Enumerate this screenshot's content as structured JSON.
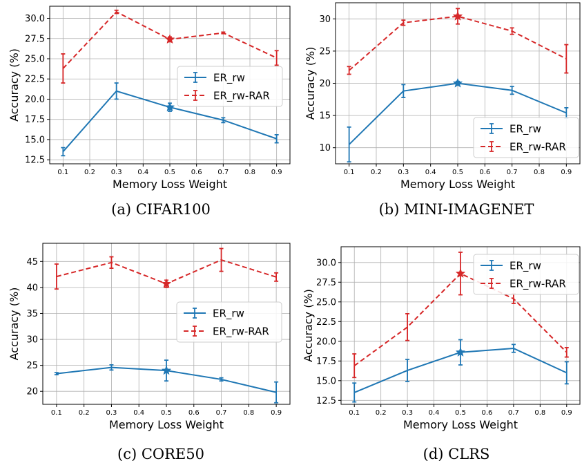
{
  "colors": {
    "er_rw": "#1f77b4",
    "er_rw_rar": "#d62728",
    "grid": "#b0b0b0"
  },
  "chart_data": [
    {
      "type": "line",
      "caption": "(a) CIFAR100",
      "xlabel": "Memory Loss Weight",
      "ylabel": "Accuracy (%)",
      "xlim": [
        0.05,
        0.95
      ],
      "ylim": [
        12.0,
        31.5
      ],
      "xticks": [
        0.1,
        0.2,
        0.3,
        0.4,
        0.5,
        0.6,
        0.7,
        0.8,
        0.9
      ],
      "xtick_labels": [
        "0.1",
        "0.2",
        "0.3",
        "0.4",
        "0.5",
        "0.6",
        "0.7",
        "0.8",
        "0.9"
      ],
      "yticks": [
        12.5,
        15.0,
        17.5,
        20.0,
        22.5,
        25.0,
        27.5,
        30.0
      ],
      "ytick_labels": [
        "12.5",
        "15.0",
        "17.5",
        "20.0",
        "22.5",
        "25.0",
        "27.5",
        "30.0"
      ],
      "grid": true,
      "legend": "center-right",
      "highlight_x": 0.5,
      "series": [
        {
          "name": "ER_rw",
          "style": "solid",
          "x": [
            0.1,
            0.3,
            0.5,
            0.7,
            0.9
          ],
          "values": [
            13.5,
            21.0,
            19.0,
            17.4,
            15.1
          ],
          "errors": [
            0.5,
            1.0,
            0.5,
            0.3,
            0.5
          ]
        },
        {
          "name": "ER_rw-RAR",
          "style": "dashed",
          "x": [
            0.1,
            0.3,
            0.5,
            0.7,
            0.9
          ],
          "values": [
            23.8,
            30.8,
            27.4,
            28.2,
            25.1
          ],
          "errors": [
            1.8,
            0.2,
            0.3,
            0.1,
            0.9
          ]
        }
      ]
    },
    {
      "type": "line",
      "caption": "(b) MINI-IMAGENET",
      "xlabel": "Memory Loss Weight",
      "ylabel": "Accuracy (%)",
      "xlim": [
        0.05,
        0.95
      ],
      "ylim": [
        7.5,
        32.5
      ],
      "xticks": [
        0.1,
        0.2,
        0.3,
        0.4,
        0.5,
        0.6,
        0.7,
        0.8,
        0.9
      ],
      "xtick_labels": [
        "0.1",
        "0.2",
        "0.3",
        "0.4",
        "0.5",
        "0.6",
        "0.7",
        "0.8",
        "0.9"
      ],
      "yticks": [
        10,
        15,
        20,
        25,
        30
      ],
      "ytick_labels": [
        "10",
        "15",
        "20",
        "25",
        "30"
      ],
      "grid": true,
      "legend": "lower-right",
      "highlight_x": 0.5,
      "series": [
        {
          "name": "ER_rw",
          "style": "solid",
          "x": [
            0.1,
            0.3,
            0.5,
            0.7,
            0.9
          ],
          "values": [
            10.5,
            18.8,
            20.0,
            18.9,
            15.4
          ],
          "errors": [
            2.7,
            1.0,
            0.3,
            0.6,
            0.8
          ]
        },
        {
          "name": "ER_rw-RAR",
          "style": "dashed",
          "x": [
            0.1,
            0.3,
            0.5,
            0.7,
            0.9
          ],
          "values": [
            22.0,
            29.4,
            30.4,
            28.1,
            23.8
          ],
          "errors": [
            0.6,
            0.4,
            1.2,
            0.5,
            2.2
          ]
        }
      ]
    },
    {
      "type": "line",
      "caption": "(c) CORE50",
      "xlabel": "Memory Loss Weight",
      "ylabel": "Accuracy (%)",
      "xlim": [
        0.05,
        0.95
      ],
      "ylim": [
        17.5,
        48.5
      ],
      "xticks": [
        0.1,
        0.2,
        0.3,
        0.4,
        0.5,
        0.6,
        0.7,
        0.8,
        0.9
      ],
      "xtick_labels": [
        "0.1",
        "0.2",
        "0.3",
        "0.4",
        "0.5",
        "0.6",
        "0.7",
        "0.8",
        "0.9"
      ],
      "yticks": [
        20,
        25,
        30,
        35,
        40,
        45
      ],
      "ytick_labels": [
        "20",
        "25",
        "30",
        "35",
        "40",
        "45"
      ],
      "grid": true,
      "legend": "center-right",
      "highlight_x": 0.5,
      "series": [
        {
          "name": "ER_rw",
          "style": "solid",
          "x": [
            0.1,
            0.3,
            0.5,
            0.7,
            0.9
          ],
          "values": [
            23.4,
            24.6,
            24.0,
            22.3,
            19.8
          ],
          "errors": [
            0.2,
            0.5,
            2.0,
            0.3,
            2.0
          ]
        },
        {
          "name": "ER_rw-RAR",
          "style": "dashed",
          "x": [
            0.1,
            0.3,
            0.5,
            0.7,
            0.9
          ],
          "values": [
            42.1,
            44.8,
            40.7,
            45.3,
            42.0
          ],
          "errors": [
            2.4,
            1.1,
            0.7,
            2.2,
            0.8
          ]
        }
      ]
    },
    {
      "type": "line",
      "caption": "(d) CLRS",
      "xlabel": "Memory Loss Weight",
      "ylabel": "Accuracy (%)",
      "xlim": [
        0.05,
        0.95
      ],
      "ylim": [
        12.0,
        32.0
      ],
      "xticks": [
        0.1,
        0.2,
        0.3,
        0.4,
        0.5,
        0.6,
        0.7,
        0.8,
        0.9
      ],
      "xtick_labels": [
        "0.1",
        "0.2",
        "0.3",
        "0.4",
        "0.5",
        "0.6",
        "0.7",
        "0.8",
        "0.9"
      ],
      "yticks": [
        12.5,
        15.0,
        17.5,
        20.0,
        22.5,
        25.0,
        27.5,
        30.0
      ],
      "ytick_labels": [
        "12.5",
        "15.0",
        "17.5",
        "20.0",
        "22.5",
        "25.0",
        "27.5",
        "30.0"
      ],
      "grid": true,
      "legend": "upper-right",
      "highlight_x": 0.5,
      "series": [
        {
          "name": "ER_rw",
          "style": "solid",
          "x": [
            0.1,
            0.3,
            0.5,
            0.7,
            0.9
          ],
          "values": [
            13.5,
            16.3,
            18.6,
            19.1,
            16.0
          ],
          "errors": [
            1.2,
            1.4,
            1.6,
            0.5,
            1.4
          ]
        },
        {
          "name": "ER_rw-RAR",
          "style": "dashed",
          "x": [
            0.1,
            0.3,
            0.5,
            0.7,
            0.9
          ],
          "values": [
            16.9,
            21.8,
            28.6,
            25.4,
            18.6
          ],
          "errors": [
            1.5,
            1.7,
            2.7,
            0.6,
            0.6
          ]
        }
      ]
    }
  ]
}
